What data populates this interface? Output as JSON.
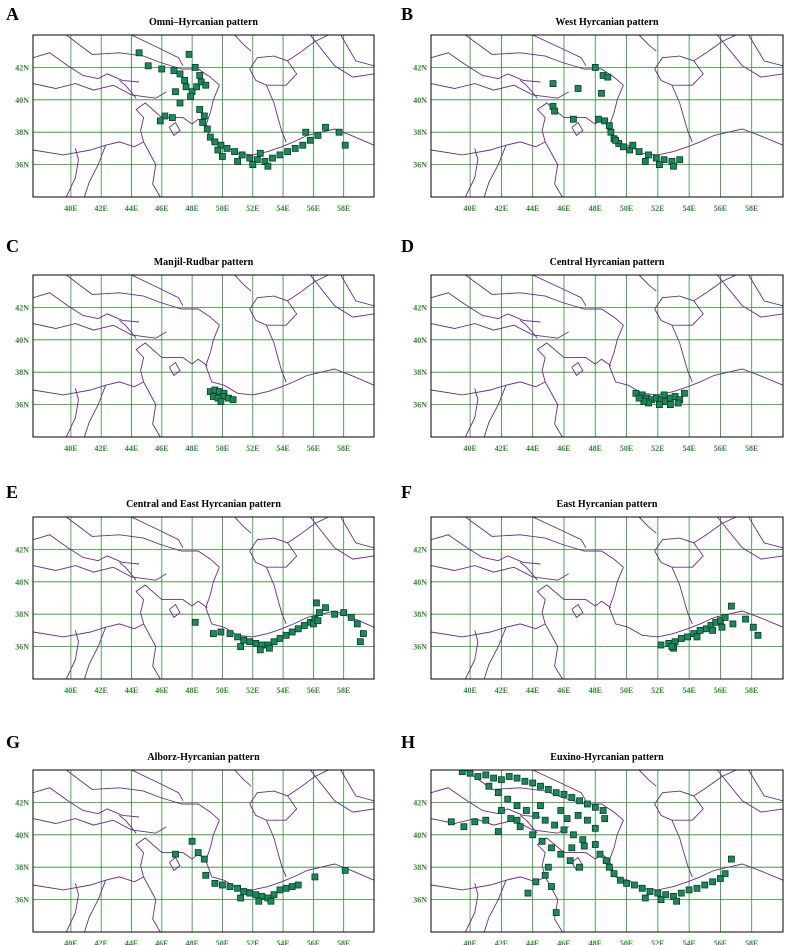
{
  "figure": {
    "panels": [
      {
        "letter": "A",
        "title": "Omni–Hyrcanian pattern"
      },
      {
        "letter": "B",
        "title": "West Hyrcanian pattern"
      },
      {
        "letter": "C",
        "title": "Manjil-Rudbar pattern"
      },
      {
        "letter": "D",
        "title": "Central Hyrcanian pattern"
      },
      {
        "letter": "E",
        "title": "Central and East Hyrcanian pattern"
      },
      {
        "letter": "F",
        "title": "East Hyrcanian pattern"
      },
      {
        "letter": "G",
        "title": "Alborz-Hyrcanian pattern"
      },
      {
        "letter": "H",
        "title": "Euxino-Hyrcanian pattern"
      }
    ],
    "x_tick_labels": [
      "40E",
      "42E",
      "44E",
      "46E",
      "48E",
      "50E",
      "52E",
      "54E",
      "56E",
      "58E"
    ],
    "y_tick_labels": [
      "42N",
      "40N",
      "38N",
      "36N"
    ],
    "colors": {
      "grid": "#2e8b2e",
      "tick_text": "#2e8b2e",
      "border": "#6b2a8a",
      "frame": "#000000",
      "marker_fill": "#168a5a",
      "marker_edge": "#0a3d26"
    },
    "marker_symbol": "square"
  },
  "chart_data": [
    {
      "type": "scatter",
      "panel": "A",
      "title": "Omni–Hyrcanian pattern",
      "xlim": [
        37.5,
        60
      ],
      "ylim": [
        34,
        44
      ],
      "grid": true,
      "points": [
        [
          44.5,
          42.9
        ],
        [
          45.1,
          42.1
        ],
        [
          46,
          41.9
        ],
        [
          46.8,
          41.8
        ],
        [
          47.2,
          41.6
        ],
        [
          47.8,
          42.8
        ],
        [
          48.2,
          42
        ],
        [
          48.5,
          41.5
        ],
        [
          47.5,
          41.2
        ],
        [
          47.6,
          40.8
        ],
        [
          48,
          40.5
        ],
        [
          48.3,
          40.8
        ],
        [
          48.6,
          41.1
        ],
        [
          48.9,
          40.9
        ],
        [
          47.9,
          40.2
        ],
        [
          46.9,
          40.5
        ],
        [
          47.2,
          39.8
        ],
        [
          46.2,
          39
        ],
        [
          46.7,
          38.9
        ],
        [
          45.9,
          38.7
        ],
        [
          48.5,
          39.4
        ],
        [
          48.8,
          39
        ],
        [
          48.7,
          38.6
        ],
        [
          49,
          38.2
        ],
        [
          49.2,
          37.7
        ],
        [
          49.5,
          37.4
        ],
        [
          49.9,
          37.2
        ],
        [
          50.3,
          37
        ],
        [
          50.8,
          36.8
        ],
        [
          51.3,
          36.6
        ],
        [
          51.8,
          36.4
        ],
        [
          52.3,
          36.3
        ],
        [
          52.8,
          36.2
        ],
        [
          53.3,
          36.4
        ],
        [
          53.8,
          36.6
        ],
        [
          54.3,
          36.8
        ],
        [
          54.8,
          37
        ],
        [
          55.3,
          37.2
        ],
        [
          55.8,
          37.5
        ],
        [
          56.3,
          37.8
        ],
        [
          56.8,
          38.3
        ],
        [
          57.7,
          38
        ],
        [
          58.1,
          37.2
        ],
        [
          55.5,
          38
        ],
        [
          50,
          36.5
        ],
        [
          51,
          36.2
        ],
        [
          52,
          36
        ],
        [
          53,
          35.9
        ],
        [
          52.5,
          36.7
        ],
        [
          49.7,
          36.9
        ]
      ]
    },
    {
      "type": "scatter",
      "panel": "B",
      "title": "West Hyrcanian pattern",
      "xlim": [
        37.5,
        60
      ],
      "ylim": [
        34,
        44
      ],
      "grid": true,
      "points": [
        [
          48,
          42
        ],
        [
          48.5,
          41.5
        ],
        [
          48.8,
          41.4
        ],
        [
          48.4,
          40.4
        ],
        [
          46.9,
          40.7
        ],
        [
          45.3,
          41
        ],
        [
          45.3,
          39.6
        ],
        [
          45.4,
          39.3
        ],
        [
          46.6,
          38.8
        ],
        [
          48.2,
          38.8
        ],
        [
          48.6,
          38.7
        ],
        [
          48.9,
          38.4
        ],
        [
          49,
          38
        ],
        [
          49.2,
          37.6
        ],
        [
          49.5,
          37.3
        ],
        [
          49.8,
          37.1
        ],
        [
          50.2,
          36.9
        ],
        [
          50.8,
          36.8
        ],
        [
          51.4,
          36.6
        ],
        [
          51.9,
          36.4
        ],
        [
          52.4,
          36.3
        ],
        [
          52.9,
          36.2
        ],
        [
          53.4,
          36.3
        ],
        [
          51.2,
          36.2
        ],
        [
          52.1,
          36
        ],
        [
          53,
          35.9
        ],
        [
          50.4,
          37.2
        ],
        [
          49.3,
          37.5
        ]
      ]
    },
    {
      "type": "scatter",
      "panel": "C",
      "title": "Manjil-Rudbar pattern",
      "xlim": [
        37.5,
        60
      ],
      "ylim": [
        34,
        44
      ],
      "grid": true,
      "points": [
        [
          49.2,
          36.8
        ],
        [
          49.5,
          36.9
        ],
        [
          49.8,
          36.8
        ],
        [
          50.1,
          36.7
        ],
        [
          49.4,
          36.5
        ],
        [
          49.7,
          36.4
        ],
        [
          50.1,
          36.5
        ],
        [
          50.4,
          36.4
        ],
        [
          50.7,
          36.3
        ],
        [
          49.9,
          36.2
        ]
      ]
    },
    {
      "type": "scatter",
      "panel": "D",
      "title": "Central Hyrcanian pattern",
      "xlim": [
        37.5,
        60
      ],
      "ylim": [
        34,
        44
      ],
      "grid": true,
      "points": [
        [
          50.6,
          36.7
        ],
        [
          51,
          36.6
        ],
        [
          51.3,
          36.4
        ],
        [
          51.6,
          36.3
        ],
        [
          51.9,
          36.4
        ],
        [
          52.2,
          36.3
        ],
        [
          52.5,
          36.2
        ],
        [
          52.8,
          36.4
        ],
        [
          53.1,
          36.5
        ],
        [
          53.4,
          36.3
        ],
        [
          53.7,
          36.7
        ],
        [
          52.4,
          36.6
        ],
        [
          51.4,
          36.1
        ],
        [
          52.1,
          36
        ],
        [
          52.8,
          36
        ],
        [
          53.3,
          36.1
        ],
        [
          51.1,
          36.2
        ],
        [
          50.8,
          36.4
        ]
      ]
    },
    {
      "type": "scatter",
      "panel": "E",
      "title": "Central and East Hyrcanian pattern",
      "xlim": [
        37.5,
        60
      ],
      "ylim": [
        34,
        44
      ],
      "grid": true,
      "points": [
        [
          48.2,
          37.5
        ],
        [
          49.4,
          36.8
        ],
        [
          49.9,
          36.9
        ],
        [
          50.5,
          36.8
        ],
        [
          51,
          36.6
        ],
        [
          51.4,
          36.4
        ],
        [
          51.8,
          36.3
        ],
        [
          52.2,
          36.2
        ],
        [
          52.6,
          36.1
        ],
        [
          53,
          36.1
        ],
        [
          53.4,
          36.3
        ],
        [
          53.8,
          36.5
        ],
        [
          54.2,
          36.7
        ],
        [
          54.6,
          36.9
        ],
        [
          55,
          37.1
        ],
        [
          55.4,
          37.3
        ],
        [
          55.8,
          37.5
        ],
        [
          56.1,
          37.7
        ],
        [
          56.4,
          38.1
        ],
        [
          56.2,
          38.7
        ],
        [
          56.8,
          38.4
        ],
        [
          57.4,
          38
        ],
        [
          58,
          38.1
        ],
        [
          58.5,
          37.8
        ],
        [
          58.9,
          37.4
        ],
        [
          59.3,
          36.8
        ],
        [
          59.1,
          36.3
        ],
        [
          51.2,
          36
        ],
        [
          52.5,
          35.8
        ],
        [
          53.1,
          35.9
        ],
        [
          56,
          37.4
        ],
        [
          56.3,
          37.6
        ]
      ]
    },
    {
      "type": "scatter",
      "panel": "F",
      "title": "East Hyrcanian pattern",
      "xlim": [
        37.5,
        60
      ],
      "ylim": [
        34,
        44
      ],
      "grid": true,
      "points": [
        [
          52.2,
          36.1
        ],
        [
          52.7,
          36.2
        ],
        [
          53.1,
          36.3
        ],
        [
          53.5,
          36.5
        ],
        [
          53.9,
          36.6
        ],
        [
          54.3,
          36.8
        ],
        [
          54.7,
          37
        ],
        [
          55.1,
          37.1
        ],
        [
          55.4,
          37.3
        ],
        [
          55.7,
          37.5
        ],
        [
          56,
          37.6
        ],
        [
          56.3,
          37.8
        ],
        [
          56.7,
          38.5
        ],
        [
          56.8,
          37.4
        ],
        [
          57.6,
          37.7
        ],
        [
          58.1,
          37.2
        ],
        [
          58.4,
          36.7
        ],
        [
          53,
          35.9
        ],
        [
          52.9,
          36
        ],
        [
          54.5,
          36.6
        ],
        [
          55.5,
          37
        ],
        [
          56.1,
          37.2
        ]
      ]
    },
    {
      "type": "scatter",
      "panel": "G",
      "title": "Alborz-Hyrcanian pattern",
      "xlim": [
        37.5,
        60
      ],
      "ylim": [
        34,
        44
      ],
      "grid": true,
      "points": [
        [
          46.9,
          38.8
        ],
        [
          48,
          39.6
        ],
        [
          48.4,
          38.9
        ],
        [
          48.8,
          38.5
        ],
        [
          48.9,
          37.5
        ],
        [
          49.5,
          37
        ],
        [
          50,
          36.9
        ],
        [
          50.5,
          36.8
        ],
        [
          51,
          36.7
        ],
        [
          51.4,
          36.5
        ],
        [
          51.8,
          36.4
        ],
        [
          52.2,
          36.3
        ],
        [
          52.6,
          36.2
        ],
        [
          53,
          36.1
        ],
        [
          53.4,
          36.3
        ],
        [
          53.8,
          36.6
        ],
        [
          54.2,
          36.7
        ],
        [
          54.6,
          36.8
        ],
        [
          55,
          36.9
        ],
        [
          56.1,
          37.4
        ],
        [
          58.1,
          37.8
        ],
        [
          51.2,
          36.1
        ],
        [
          52.4,
          35.9
        ],
        [
          53.2,
          35.9
        ]
      ]
    },
    {
      "type": "scatter",
      "panel": "H",
      "title": "Euxino-Hyrcanian pattern",
      "xlim": [
        37.5,
        60
      ],
      "ylim": [
        34,
        44
      ],
      "grid": true,
      "points": [
        [
          39.5,
          43.9
        ],
        [
          40,
          43.8
        ],
        [
          40.5,
          43.6
        ],
        [
          41,
          43.7
        ],
        [
          41.5,
          43.5
        ],
        [
          42,
          43.4
        ],
        [
          42.5,
          43.6
        ],
        [
          43,
          43.5
        ],
        [
          43.5,
          43.3
        ],
        [
          44,
          43.2
        ],
        [
          44.5,
          43
        ],
        [
          45,
          42.8
        ],
        [
          45.5,
          42.6
        ],
        [
          46,
          42.5
        ],
        [
          46.5,
          42.3
        ],
        [
          47,
          42.1
        ],
        [
          47.5,
          41.9
        ],
        [
          48,
          41.7
        ],
        [
          48.5,
          41.5
        ],
        [
          41.2,
          43
        ],
        [
          41.8,
          42.6
        ],
        [
          42.4,
          42.2
        ],
        [
          43,
          41.8
        ],
        [
          43.6,
          41.5
        ],
        [
          44.2,
          41.2
        ],
        [
          44.8,
          40.9
        ],
        [
          45.4,
          40.6
        ],
        [
          46,
          40.3
        ],
        [
          46.6,
          40
        ],
        [
          47.2,
          39.7
        ],
        [
          42,
          41.5
        ],
        [
          42.6,
          41
        ],
        [
          43.2,
          40.5
        ],
        [
          44,
          40
        ],
        [
          44.6,
          39.6
        ],
        [
          45.2,
          39.2
        ],
        [
          45.8,
          38.8
        ],
        [
          46.4,
          38.4
        ],
        [
          47,
          38
        ],
        [
          45,
          38
        ],
        [
          44.8,
          37.5
        ],
        [
          44.2,
          37.1
        ],
        [
          45.2,
          36.8
        ],
        [
          43.7,
          36.4
        ],
        [
          45.5,
          35.2
        ],
        [
          38.8,
          40.8
        ],
        [
          39.6,
          40.5
        ],
        [
          40.3,
          40.8
        ],
        [
          41,
          40.9
        ],
        [
          41.8,
          40.2
        ],
        [
          43,
          40.9
        ],
        [
          44.5,
          41.8
        ],
        [
          45.8,
          41.5
        ],
        [
          46.2,
          41
        ],
        [
          46.9,
          41.2
        ],
        [
          47.5,
          40.9
        ],
        [
          48,
          40.4
        ],
        [
          48.6,
          41
        ],
        [
          46.5,
          39.2
        ],
        [
          47.3,
          39.3
        ],
        [
          48,
          39.4
        ],
        [
          48.3,
          38.8
        ],
        [
          48.7,
          38.4
        ],
        [
          48.9,
          38
        ],
        [
          49.2,
          37.6
        ],
        [
          49.6,
          37.2
        ],
        [
          50,
          37
        ],
        [
          50.5,
          36.9
        ],
        [
          51,
          36.7
        ],
        [
          51.5,
          36.5
        ],
        [
          52,
          36.4
        ],
        [
          52.5,
          36.3
        ],
        [
          53,
          36.2
        ],
        [
          53.5,
          36.4
        ],
        [
          54,
          36.6
        ],
        [
          54.5,
          36.7
        ],
        [
          55,
          36.9
        ],
        [
          55.5,
          37.1
        ],
        [
          56,
          37.3
        ],
        [
          56.3,
          37.6
        ],
        [
          56.7,
          38.5
        ],
        [
          52.2,
          36
        ],
        [
          53.2,
          35.9
        ],
        [
          51.2,
          36.1
        ]
      ]
    }
  ]
}
